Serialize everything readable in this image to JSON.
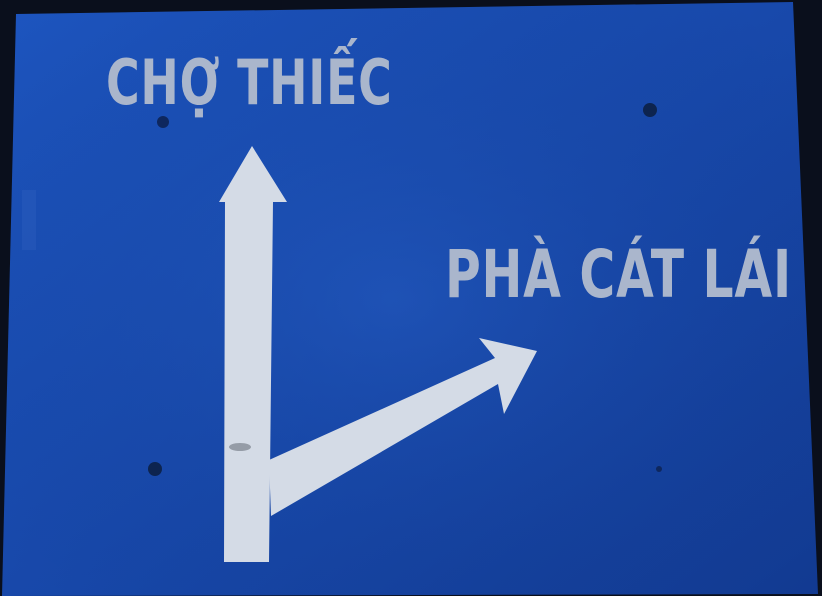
{
  "sign": {
    "background_color": "#1747a8",
    "symbol_color": "#d4dbe6",
    "text_color": "#aab6cc",
    "destinations": {
      "north_label": "CHỢ THIẾC",
      "east_label": "PHÀ CÁT LÁI"
    },
    "arrows": {
      "north": "up-arrow-icon",
      "east": "up-right-arrow-icon"
    }
  }
}
